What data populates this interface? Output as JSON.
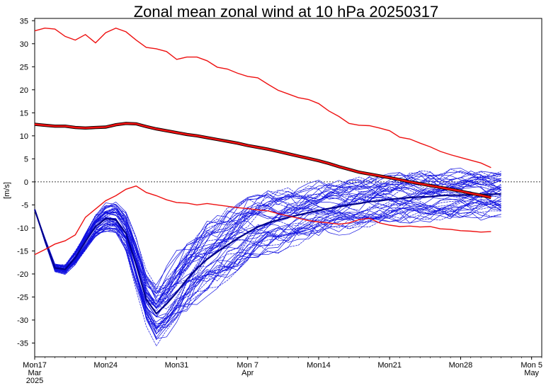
{
  "chart_data": {
    "type": "line",
    "title": "Zonal mean zonal wind at 10 hPa 20250317",
    "ylabel": "[m/s]",
    "ylim": [
      -38,
      35.5
    ],
    "xlim": [
      "2025-03-17",
      "2025-05-06"
    ],
    "y_ticks": [
      35,
      30,
      25,
      20,
      15,
      10,
      5,
      0,
      -5,
      -10,
      -15,
      -20,
      -25,
      -30,
      -35
    ],
    "x_ticks": [
      {
        "date": "2025-03-17",
        "lines": [
          "Mon17",
          "Mar",
          "2025"
        ]
      },
      {
        "date": "2025-03-24",
        "lines": [
          "Mon24"
        ]
      },
      {
        "date": "2025-03-31",
        "lines": [
          "Mon31"
        ]
      },
      {
        "date": "2025-04-07",
        "lines": [
          "Mon 7",
          "Apr"
        ]
      },
      {
        "date": "2025-04-14",
        "lines": [
          "Mon14"
        ]
      },
      {
        "date": "2025-04-21",
        "lines": [
          "Mon21"
        ]
      },
      {
        "date": "2025-04-28",
        "lines": [
          "Mon28"
        ]
      },
      {
        "date": "2025-05-05",
        "lines": [
          "Mon 5",
          "May"
        ]
      }
    ],
    "reference_line": {
      "y": 0,
      "style": "dashed",
      "color": "#000000"
    },
    "climatology": {
      "dates": [
        "2025-03-17",
        "2025-03-18",
        "2025-03-19",
        "2025-03-20",
        "2025-03-21",
        "2025-03-22",
        "2025-03-23",
        "2025-03-24",
        "2025-03-25",
        "2025-03-26",
        "2025-03-27",
        "2025-03-28",
        "2025-03-29",
        "2025-03-30",
        "2025-03-31",
        "2025-04-01",
        "2025-04-02",
        "2025-04-03",
        "2025-04-04",
        "2025-04-05",
        "2025-04-06",
        "2025-04-07",
        "2025-04-08",
        "2025-04-09",
        "2025-04-10",
        "2025-04-11",
        "2025-04-12",
        "2025-04-13",
        "2025-04-14",
        "2025-04-15",
        "2025-04-16",
        "2025-04-17",
        "2025-04-18",
        "2025-04-19",
        "2025-04-20",
        "2025-04-21",
        "2025-04-22",
        "2025-04-23",
        "2025-04-24",
        "2025-04-25",
        "2025-04-26",
        "2025-04-27",
        "2025-04-28",
        "2025-04-29",
        "2025-04-30",
        "2025-05-01"
      ],
      "max": [
        32.8,
        33.4,
        33.2,
        31.6,
        30.8,
        32.0,
        30.2,
        32.4,
        33.4,
        32.6,
        30.8,
        29.2,
        28.9,
        28.3,
        26.6,
        27.1,
        27.1,
        26.3,
        24.9,
        24.5,
        23.6,
        22.9,
        22.6,
        21.2,
        19.9,
        19.1,
        18.3,
        17.9,
        17.0,
        15.4,
        14.2,
        12.7,
        12.3,
        12.2,
        11.7,
        11.1,
        9.7,
        9.3,
        8.4,
        7.6,
        6.6,
        5.9,
        5.3,
        4.7,
        4.1,
        3.1
      ],
      "mean": [
        12.5,
        12.3,
        12.1,
        12.1,
        11.8,
        11.7,
        11.8,
        11.9,
        12.4,
        12.7,
        12.6,
        12.0,
        11.5,
        11.1,
        10.7,
        10.3,
        10.0,
        9.6,
        9.2,
        8.8,
        8.4,
        7.9,
        7.5,
        7.1,
        6.6,
        6.1,
        5.6,
        5.1,
        4.6,
        4.0,
        3.3,
        2.7,
        2.1,
        1.7,
        1.3,
        0.9,
        0.5,
        0.0,
        -0.4,
        -0.8,
        -1.2,
        -1.6,
        -2.0,
        -2.5,
        -2.9,
        -3.4
      ],
      "min": [
        -15.8,
        -14.7,
        -13.5,
        -12.8,
        -11.5,
        -7.7,
        -5.9,
        -4.1,
        -3.0,
        -1.6,
        -0.9,
        -2.3,
        -3.0,
        -3.9,
        -4.5,
        -4.6,
        -5.0,
        -4.7,
        -5.0,
        -5.3,
        -5.6,
        -5.8,
        -6.1,
        -6.3,
        -6.9,
        -7.4,
        -7.9,
        -8.4,
        -8.7,
        -8.9,
        -9.2,
        -8.9,
        -8.2,
        -7.9,
        -8.9,
        -9.4,
        -9.7,
        -9.6,
        -9.8,
        -9.7,
        -10.2,
        -10.3,
        -10.6,
        -10.7,
        -10.9,
        -10.8
      ]
    },
    "ensemble": {
      "member_count": 51,
      "start": "2025-03-17",
      "days": [
        0,
        1,
        2,
        3,
        4,
        5,
        6,
        7,
        8,
        9,
        10,
        11,
        12,
        13,
        14,
        15,
        16,
        17,
        18,
        19,
        20,
        21,
        22,
        23,
        24,
        25,
        26,
        27,
        28,
        29,
        30,
        31,
        32,
        33,
        34,
        35,
        36,
        37,
        38,
        39,
        40,
        41,
        42,
        43,
        44,
        45,
        46
      ],
      "central": [
        -6.0,
        -12.6,
        -18.7,
        -19.0,
        -16.5,
        -13.0,
        -9.7,
        -8.0,
        -8.2,
        -11.2,
        -18.0,
        -25.5,
        -28.6,
        -26.5,
        -24.0,
        -21.2,
        -18.8,
        -16.8,
        -15.2,
        -13.7,
        -12.3,
        -11.0,
        -9.8,
        -8.9,
        -8.3,
        -7.7,
        -7.2,
        -6.7,
        -6.2,
        -5.8,
        -5.4,
        -5.0,
        -4.7,
        -4.3,
        -4.1,
        -3.8,
        -3.6,
        -3.4,
        -3.3,
        -3.2,
        -3.0,
        -2.9,
        -2.9,
        -2.8,
        -2.7,
        -2.7,
        -2.6
      ],
      "spread": [
        0.0,
        0.3,
        0.5,
        0.6,
        0.9,
        1.2,
        1.5,
        1.9,
        2.2,
        2.6,
        3.1,
        3.6,
        3.9,
        4.1,
        4.4,
        4.6,
        4.7,
        4.8,
        4.8,
        4.8,
        4.7,
        4.6,
        4.5,
        4.3,
        4.1,
        3.9,
        3.7,
        3.6,
        3.5,
        3.4,
        3.4,
        3.4,
        3.4,
        3.4,
        3.4,
        3.4,
        3.4,
        3.4,
        3.3,
        3.3,
        3.2,
        3.2,
        3.2,
        3.1,
        3.1,
        3.0,
        3.0
      ],
      "color": "#1010e0"
    },
    "colors": {
      "climatology": "#ee1111",
      "mean_outline": "#000000",
      "ensemble": "#1010e0",
      "ensemble_mean": "#00008b"
    }
  }
}
